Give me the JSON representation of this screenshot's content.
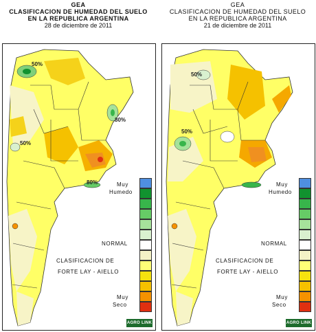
{
  "maps": [
    {
      "org": "GEA",
      "title_line1": "CLASIFICACION DE HUMEDAD DEL SUELO",
      "title_line2": "EN LA REPUBLICA ARGENTINA",
      "date": "28 de diciembre de 2011",
      "isolines": [
        "50%",
        "50%",
        "80%",
        "80%"
      ],
      "legend_top": "Muy",
      "legend_top2": "Humedo",
      "legend_mid": "NORMAL",
      "classification": "CLASIFICACION DE",
      "method": "FORTE LAY - AIELLO",
      "legend_bottom": "Muy",
      "legend_bottom2": "Seco",
      "logo": "AGRO LINK"
    },
    {
      "org": "GEA",
      "title_line1": "CLASIFICACION DE HUMEDAD DEL SUELO",
      "title_line2": "EN LA REPUBLICA ARGENTINA",
      "date": "21 de diciembre de 2011",
      "isolines": [
        "50%",
        "50%"
      ],
      "legend_top": "Muy",
      "legend_top2": "Humedo",
      "legend_mid": "NORMAL",
      "classification": "CLASIFICACION DE",
      "method": "FORTE LAY - AIELLO",
      "legend_bottom": "Muy",
      "legend_bottom2": "Seco",
      "logo": "AGRO LINK"
    }
  ],
  "legend_colors": [
    "#4f8fe0",
    "#11922f",
    "#38b54b",
    "#66cc66",
    "#a6e29b",
    "#d9f1cf",
    "#ffffff",
    "#f4f2c6",
    "#ffff77",
    "#f5e20f",
    "#f5c100",
    "#f59200",
    "#e03010"
  ]
}
